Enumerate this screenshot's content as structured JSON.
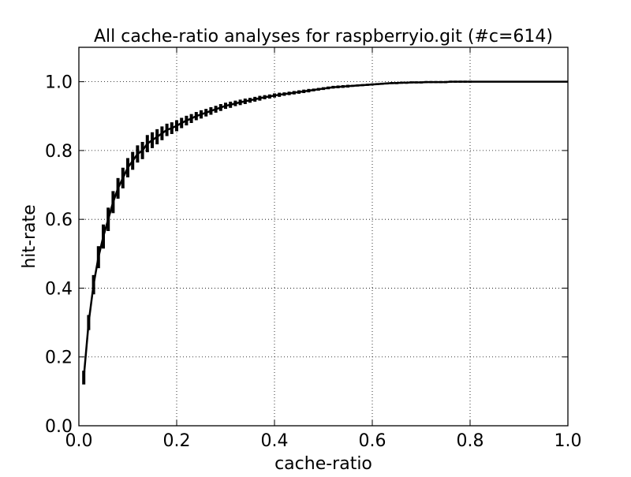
{
  "chart_data": {
    "type": "line",
    "title": "All cache-ratio analyses for raspberryio.git (#c=614)",
    "xlabel": "cache-ratio",
    "ylabel": "hit-rate",
    "xlim": [
      0.0,
      1.0
    ],
    "ylim": [
      0.0,
      1.1
    ],
    "x_ticks": [
      0.0,
      0.2,
      0.4,
      0.6,
      0.8,
      1.0
    ],
    "x_tick_labels": [
      "0.0",
      "0.2",
      "0.4",
      "0.6",
      "0.8",
      "1.0"
    ],
    "y_ticks": [
      0.0,
      0.2,
      0.4,
      0.6,
      0.8,
      1.0
    ],
    "y_tick_labels": [
      "0.0",
      "0.2",
      "0.4",
      "0.6",
      "0.8",
      "1.0"
    ],
    "grid": true,
    "grid_style": "dotted",
    "line_color": "#000000",
    "series": [
      {
        "x": [
          0.01,
          0.02,
          0.03,
          0.04,
          0.05,
          0.06,
          0.07,
          0.08,
          0.09,
          0.1,
          0.11,
          0.12,
          0.13,
          0.14,
          0.15,
          0.16,
          0.17,
          0.18,
          0.19,
          0.2,
          0.21,
          0.22,
          0.23,
          0.24,
          0.25,
          0.26,
          0.27,
          0.28,
          0.29,
          0.3,
          0.31,
          0.32,
          0.33,
          0.34,
          0.35,
          0.36,
          0.37,
          0.38,
          0.39,
          0.4,
          0.41,
          0.42,
          0.43,
          0.44,
          0.45,
          0.46,
          0.47,
          0.48,
          0.49,
          0.5,
          0.51,
          0.52,
          0.53,
          0.54,
          0.55,
          0.56,
          0.57,
          0.58,
          0.59,
          0.6,
          0.61,
          0.62,
          0.63,
          0.64,
          0.65,
          0.66,
          0.67,
          0.68,
          0.69,
          0.7,
          0.71,
          0.72,
          0.73,
          0.74,
          0.75,
          0.76,
          0.77,
          0.78,
          0.79,
          0.8,
          0.85,
          0.9,
          0.95,
          1.0
        ],
        "y": [
          0.14,
          0.3,
          0.41,
          0.49,
          0.55,
          0.6,
          0.65,
          0.69,
          0.72,
          0.75,
          0.77,
          0.79,
          0.8,
          0.82,
          0.83,
          0.84,
          0.85,
          0.86,
          0.865,
          0.872,
          0.88,
          0.887,
          0.893,
          0.9,
          0.905,
          0.91,
          0.915,
          0.92,
          0.925,
          0.93,
          0.933,
          0.937,
          0.94,
          0.943,
          0.946,
          0.949,
          0.952,
          0.955,
          0.957,
          0.96,
          0.962,
          0.964,
          0.966,
          0.968,
          0.97,
          0.972,
          0.974,
          0.976,
          0.978,
          0.98,
          0.982,
          0.984,
          0.985,
          0.986,
          0.987,
          0.988,
          0.989,
          0.99,
          0.991,
          0.992,
          0.993,
          0.994,
          0.995,
          0.996,
          0.996,
          0.997,
          0.997,
          0.998,
          0.998,
          0.998,
          0.999,
          0.999,
          0.999,
          0.999,
          0.999,
          1.0,
          1.0,
          1.0,
          1.0,
          1.0,
          1.0,
          1.0,
          1.0,
          1.0
        ],
        "err": [
          0.02,
          0.022,
          0.028,
          0.032,
          0.035,
          0.034,
          0.032,
          0.03,
          0.03,
          0.028,
          0.026,
          0.025,
          0.025,
          0.025,
          0.023,
          0.022,
          0.02,
          0.018,
          0.017,
          0.016,
          0.015,
          0.014,
          0.013,
          0.012,
          0.012,
          0.011,
          0.011,
          0.01,
          0.01,
          0.009,
          0.009,
          0.008,
          0.008,
          0.008,
          0.007,
          0.007,
          0.007,
          0.006,
          0.006,
          0.006,
          0.006,
          0.005,
          0.005,
          0.005,
          0.005,
          0.005,
          0.005,
          0.004,
          0.004,
          0.004,
          0.004,
          0.004,
          0.004,
          0.004,
          0.004,
          0.003,
          0.003,
          0.003,
          0.003,
          0.003,
          0.003,
          0.003,
          0.003,
          0.003,
          0.003,
          0.003,
          0.003,
          0.003,
          0.003,
          0.003,
          0.003,
          0.003,
          0.003,
          0.003,
          0.003,
          0.003,
          0.003,
          0.003,
          0.003,
          0.003,
          0.0,
          0.0,
          0.0,
          0.0
        ]
      }
    ]
  }
}
